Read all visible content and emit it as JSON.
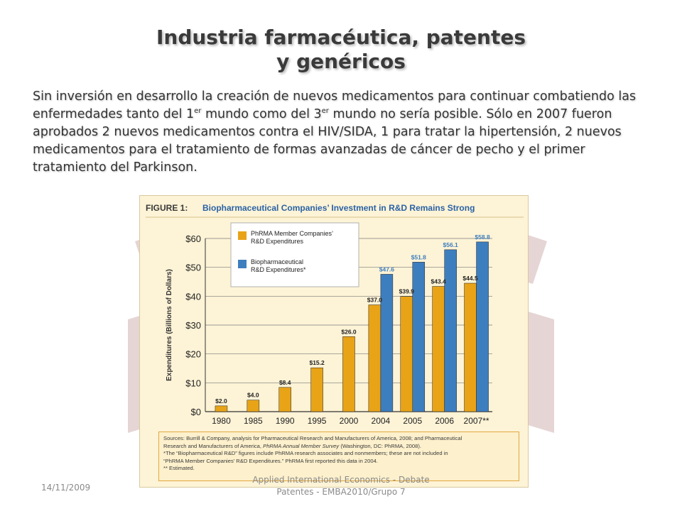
{
  "slide": {
    "title_line1": "Industria farmacéutica, patentes",
    "title_line2": "y genéricos",
    "paragraph": {
      "part1": "Sin inversión en desarrollo la creación de nuevos medicamentos para continuar combatiendo las enfermedades tanto del 1",
      "sup1": "er",
      "part2": " mundo como del 3",
      "sup2": "er",
      "part3": " mundo no sería posible. Sólo  en 2007 fueron aprobados  2 nuevos medicamentos  contra el HIV/SIDA, 1 para tratar la hipertensión, 2 nuevos medicamentos para el tratamiento de formas avanzadas de cáncer de pecho y el primer tratamiento del Parkinson."
    },
    "footer_date": "14/11/2009",
    "footer_line1": "Applied International Economics - Debate",
    "footer_line2": "Patentes - EMBA2010/Grupo 7"
  },
  "colors": {
    "phrma": "#e8a317",
    "bio": "#3d7ebf",
    "figure_title": "#2a62a6",
    "grid": "#7a7a7a"
  },
  "chart_data": {
    "type": "bar",
    "title_prefix": "FIGURE 1:",
    "title": "Biopharmaceutical Companies’ Investment in R&D Remains Strong",
    "ylabel": "Expenditures (Billions of Dollars)",
    "xlabel": "",
    "ylim": [
      0,
      60
    ],
    "yticks": [
      "$0",
      "$10",
      "$20",
      "$30",
      "$40",
      "$50",
      "$60"
    ],
    "categories": [
      "1980",
      "1985",
      "1990",
      "1995",
      "2000",
      "2004",
      "2005",
      "2006",
      "2007**"
    ],
    "series": [
      {
        "name_line1": "PhRMA Member Companies’",
        "name_line2": "R&D Expenditures",
        "values": [
          2.0,
          4.0,
          8.4,
          15.2,
          26.0,
          37.0,
          39.9,
          43.4,
          44.5
        ],
        "labels": [
          "$2.0",
          "$4.0",
          "$8.4",
          "$15.2",
          "$26.0",
          "$37.0",
          "$39.9",
          "$43.4",
          "$44.5"
        ]
      },
      {
        "name_line1": "Biopharmaceutical",
        "name_line2": "R&D Expenditures*",
        "values": [
          null,
          null,
          null,
          null,
          null,
          47.6,
          51.8,
          56.1,
          58.8
        ],
        "labels": [
          "",
          "",
          "",
          "",
          "",
          "$47.6",
          "$51.8",
          "$56.1",
          "$58.8"
        ]
      }
    ],
    "legend_position": "top-left",
    "grid": true
  },
  "sources": {
    "line1": "Sources: Burrill & Company, analysis for Pharmaceutical Research and Manufacturers of America, 2008; and Pharmaceutical",
    "line2a": "Research and Manufacturers of America, ",
    "line2b": "PhRMA Annual Member Survey",
    "line2c": " (Washington, DC: PhRMA, 2008).",
    "line3": "*The “Biopharmaceutical R&D” figures include PhRMA research associates and nonmembers; these are not included in",
    "line4": "“PhRMA Member Companies’ R&D Expenditures.” PhRMA first reported this data in 2004.",
    "line5": "** Estimated."
  }
}
